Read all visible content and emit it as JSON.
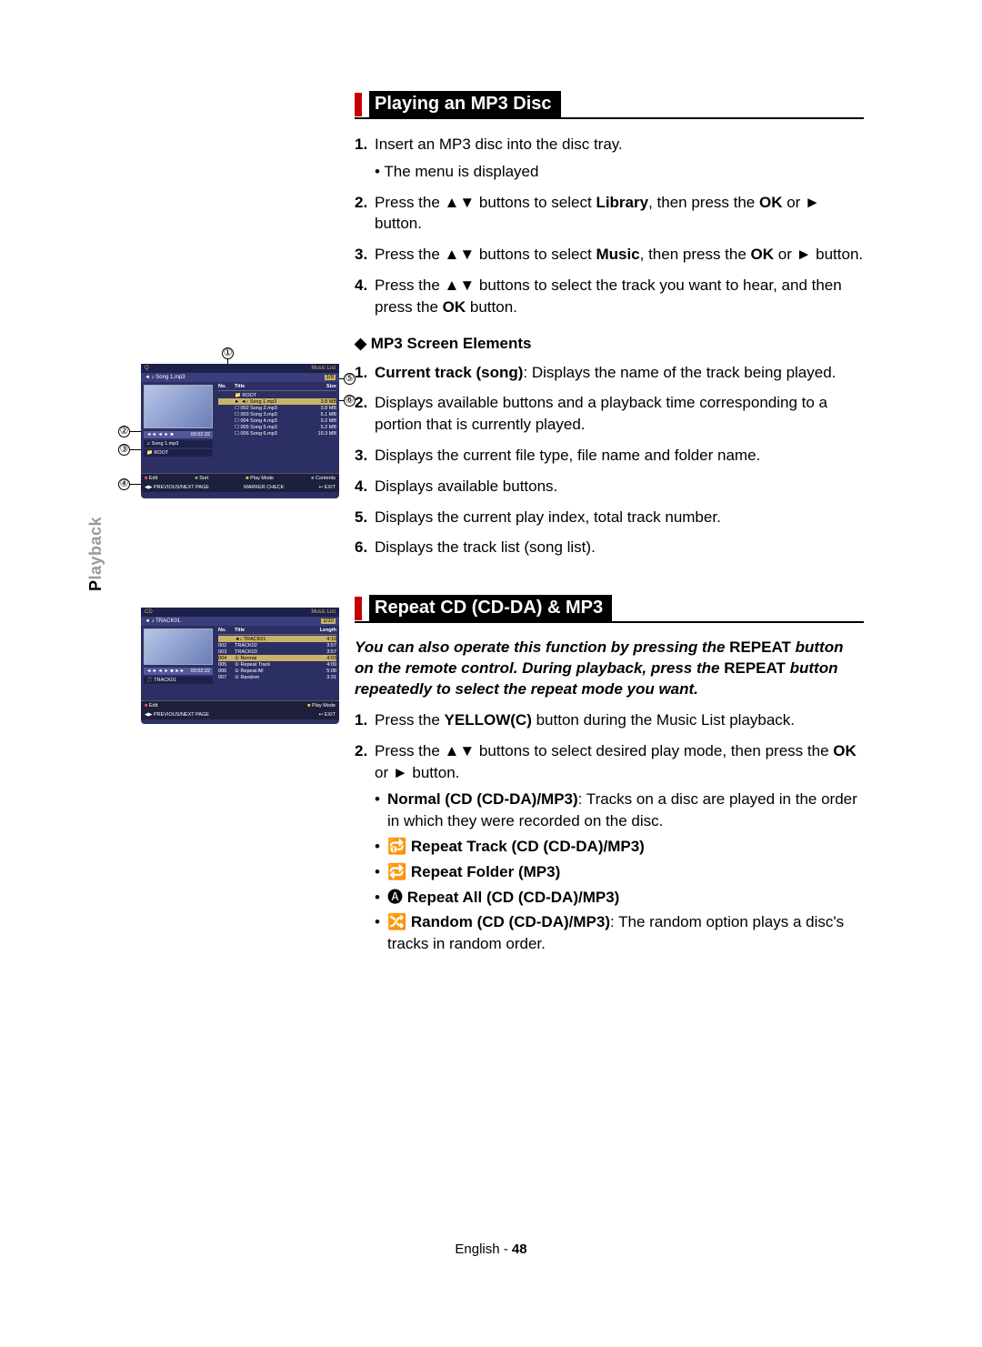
{
  "sidebar": {
    "label_cap": "P",
    "label_rest": "layback"
  },
  "section1": {
    "title": "Playing an MP3 Disc",
    "steps": [
      {
        "n": "1.",
        "text": "Insert an MP3 disc into the disc tray.",
        "bullet": "The menu is displayed"
      },
      {
        "n": "2.",
        "pre": "Press the ▲▼ buttons to select ",
        "bold": "Library",
        "mid": ", then press the ",
        "bold2": "OK",
        "post": " or ► button."
      },
      {
        "n": "3.",
        "pre": "Press the ▲▼ buttons to select ",
        "bold": "Music",
        "mid": ", then press the ",
        "bold2": "OK",
        "post": " or ► button."
      },
      {
        "n": "4.",
        "pre": "Press the ▲▼ buttons to select the track you want to hear, and then press the ",
        "bold": "OK",
        "post": " button."
      }
    ],
    "subhead": "MP3 Screen Elements",
    "elements": [
      {
        "n": "1.",
        "bold": "Current track (song)",
        "rest": ": Displays the name of the track being played."
      },
      {
        "n": "2.",
        "text": "Displays available buttons and a playback time corresponding to a portion that is currently played."
      },
      {
        "n": "3.",
        "text": "Displays the current file type, file name and folder name."
      },
      {
        "n": "4.",
        "text": "Displays available buttons."
      },
      {
        "n": "5.",
        "text": "Displays the current play index, total track number."
      },
      {
        "n": "6.",
        "text": "Displays the track list (song list)."
      }
    ]
  },
  "section2": {
    "title": "Repeat CD (CD-DA) & MP3",
    "note_pre": "You can also operate this function by pressing the ",
    "note_b1": "REPEAT",
    "note_mid": " button on the remote control. During playback, press the ",
    "note_b2": "REPEAT",
    "note_post": " button repeatedly to select the repeat mode you want.",
    "step1_pre": "Press the ",
    "step1_bold": "YELLOW(C)",
    "step1_post": " button during the Music List playback.",
    "step2_pre": "Press the ▲▼ buttons to select desired play mode, then press the ",
    "step2_bold": "OK",
    "step2_post": " or ► button.",
    "modes": [
      {
        "bold": "Normal (CD (CD-DA)/MP3)",
        "rest": ": Tracks on a disc are played in the order in which they were recorded on the disc."
      },
      {
        "icon": "🔂 ",
        "bold": "Repeat Track (CD (CD-DA)/MP3)"
      },
      {
        "icon": "🔁 ",
        "bold": "Repeat Folder (MP3)"
      },
      {
        "icon": "🅐 ",
        "bold": "Repeat All (CD (CD-DA)/MP3)"
      },
      {
        "icon": "🔀 ",
        "bold": "Random (CD (CD-DA)/MP3)",
        "rest": ": The random option plays a disc's tracks in random order."
      }
    ]
  },
  "footer": {
    "lang": "English",
    "sep": " - ",
    "page": "48"
  },
  "fig1": {
    "hdr_left": "Q",
    "hdr_right": "Music List",
    "now_icon": "◄ ♪",
    "now_track": "Song 1.mp3",
    "now_idx": "1/9",
    "ctrl": "◄◄ ◄ ► ■",
    "time": "00:02:22",
    "info1": "♫  Song 1.mp3",
    "info2": "📁  ROOT",
    "cols": {
      "no": "No.",
      "title": "Title",
      "size": "Size"
    },
    "rows": [
      {
        "no": "",
        "title": "📁  ROOT",
        "size": ""
      },
      {
        "no": "",
        "title": "► ◄♪ Song 1.mp3",
        "size": "3.8 MB",
        "hl": true
      },
      {
        "no": "",
        "title": "☐ 002 Song 2.mp3",
        "size": "3.8 MB"
      },
      {
        "no": "",
        "title": "☐ 003 Song 3.mp3",
        "size": "5.1 MB"
      },
      {
        "no": "",
        "title": "☐ 004 Song 4.mp3",
        "size": "9.2 MB"
      },
      {
        "no": "",
        "title": "☐ 005 Song 5.mp3",
        "size": "5.2 MB"
      },
      {
        "no": "",
        "title": "☐ 006 Song 6.mp3",
        "size": "10.3 MB"
      }
    ],
    "foot_row1": {
      "a": "Edit",
      "b": "Sort",
      "c": "Play Mode",
      "d": "Contents"
    },
    "foot_row2": {
      "a": "◀▶ PREVIOUS/NEXT PAGE",
      "b": "MARKER CHECK",
      "c": "↩ EXIT"
    },
    "callouts": [
      "①",
      "②",
      "③",
      "④",
      "⑤",
      "⑥"
    ]
  },
  "fig2": {
    "hdr_left": "CD",
    "hdr_right": "Music List",
    "now_icon": "◄ ♪",
    "now_track": "TRACK01",
    "now_idx": "1/10",
    "ctrl": "◄◄ ◄ ► ■ ►►",
    "time": "00:02:22",
    "info1": "🎵 TRACK01",
    "cols": {
      "no": "No.",
      "title": "Title",
      "len": "Length"
    },
    "rows": [
      {
        "no": "",
        "title": "◄♪  TRACK01",
        "len": "4:19",
        "hl": true
      },
      {
        "no": "002",
        "title": "TRACK02",
        "len": "3:57"
      },
      {
        "no": "003",
        "title": "TRACK03",
        "len": "3:57"
      },
      {
        "no": "004",
        "title": "① Normal",
        "len": "4:03",
        "hl": true
      },
      {
        "no": "005",
        "title": "① Repeat Track",
        "len": "4:09"
      },
      {
        "no": "006",
        "title": "① Repeat All",
        "len": "5:08"
      },
      {
        "no": "007",
        "title": "① Random",
        "len": "3:31"
      }
    ],
    "foot_row1": {
      "a": "Edit",
      "c": "Play Mode"
    },
    "foot_row2": {
      "a": "◀▶ PREVIOUS/NEXT PAGE",
      "c": "↩ EXIT"
    }
  }
}
